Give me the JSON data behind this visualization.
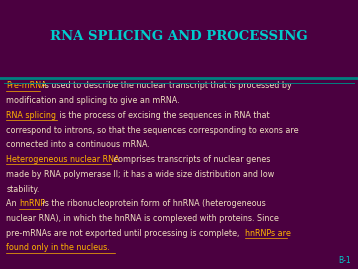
{
  "title": "RNA SPLICING AND PROCESSING",
  "title_color": "#00CCCC",
  "header_bg": "#4B0040",
  "divider_color": "#008080",
  "body_bg": "#AA0066",
  "body_text_color": "#F0E0C0",
  "term_color": "#FFB300",
  "slide_number": "B-1",
  "slide_num_color": "#00CCCC",
  "body_lines": [
    [
      [
        "Pre-mRNA",
        "#FFB300",
        true
      ],
      [
        " is used to describe the nuclear transcript that is processed by",
        "#F0E0C0",
        false
      ]
    ],
    [
      [
        "modification and splicing to give an mRNA.",
        "#F0E0C0",
        false
      ]
    ],
    [
      [
        "RNA splicing",
        "#FFB300",
        true
      ],
      [
        " is the process of excising the sequences in RNA that",
        "#F0E0C0",
        false
      ]
    ],
    [
      [
        "correspond to introns, so that the sequences corresponding to exons are",
        "#F0E0C0",
        false
      ]
    ],
    [
      [
        "connected into a continuous mRNA.",
        "#F0E0C0",
        false
      ]
    ],
    [
      [
        "Heterogeneous nuclear RNA",
        "#FFB300",
        true
      ],
      [
        " comprises transcripts of nuclear genes",
        "#F0E0C0",
        false
      ]
    ],
    [
      [
        "made by RNA polymerase II; it has a wide size distribution and low",
        "#F0E0C0",
        false
      ]
    ],
    [
      [
        "stability.",
        "#F0E0C0",
        false
      ]
    ],
    [
      [
        "An ",
        "#F0E0C0",
        false
      ],
      [
        "hnRNP",
        "#FFB300",
        true
      ],
      [
        " is the ribonucleoprotein form of hnRNA (heterogeneous",
        "#F0E0C0",
        false
      ]
    ],
    [
      [
        "nuclear RNA), in which the hnRNA is complexed with proteins. Since",
        "#F0E0C0",
        false
      ]
    ],
    [
      [
        "pre-mRNAs are not exported until processing is complete, ",
        "#F0E0C0",
        false
      ],
      [
        "hnRNPs are",
        "#FFB300",
        true
      ]
    ],
    [
      [
        "found only in the nucleus.",
        "#FFB300",
        true
      ]
    ]
  ]
}
